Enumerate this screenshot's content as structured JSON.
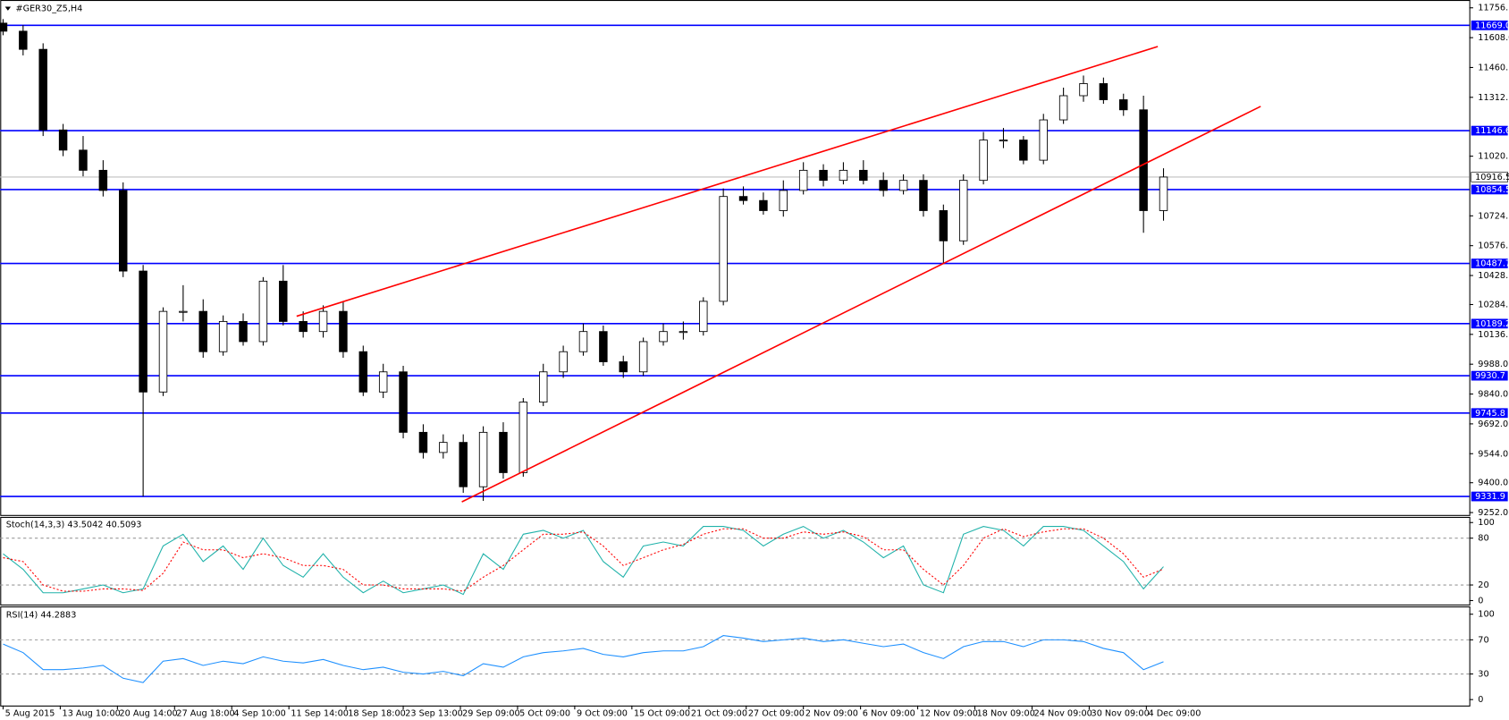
{
  "chart_data": [
    {
      "type": "candlestick",
      "title": "#GER30_Z5,H4",
      "xlim": [
        -1,
        513
      ],
      "xticks": [
        {
          "value": 0,
          "label": "5 Aug 2015"
        },
        {
          "value": 20,
          "label": "13 Aug 10:00"
        },
        {
          "value": 40,
          "label": "20 Aug 14:00"
        },
        {
          "value": 60,
          "label": "27 Aug 18:00"
        },
        {
          "value": 80,
          "label": "4 Sep 10:00"
        },
        {
          "value": 100,
          "label": "11 Sep 14:00"
        },
        {
          "value": 120,
          "label": "18 Sep 18:00"
        },
        {
          "value": 140,
          "label": "23 Sep 13:00"
        },
        {
          "value": 160,
          "label": "29 Sep 09:00"
        },
        {
          "value": 180,
          "label": "5 Oct 09:00"
        },
        {
          "value": 200,
          "label": "9 Oct 09:00"
        },
        {
          "value": 220,
          "label": "15 Oct 09:00"
        },
        {
          "value": 240,
          "label": "21 Oct 09:00"
        },
        {
          "value": 260,
          "label": "27 Oct 09:00"
        },
        {
          "value": 280,
          "label": "2 Nov 09:00"
        },
        {
          "value": 300,
          "label": "6 Nov 09:00"
        },
        {
          "value": 320,
          "label": "12 Nov 09:00"
        },
        {
          "value": 340,
          "label": "18 Nov 09:00"
        },
        {
          "value": 360,
          "label": "24 Nov 09:00"
        },
        {
          "value": 380,
          "label": "30 Nov 09:00"
        },
        {
          "value": 400,
          "label": "4 Dec 09:00"
        }
      ],
      "ylim": [
        9240,
        11790
      ],
      "yticks": [
        {
          "value": 11756,
          "label": "11756."
        },
        {
          "value": 11608,
          "label": "11608.0"
        },
        {
          "value": 11460,
          "label": "11460."
        },
        {
          "value": 11312,
          "label": "11312."
        },
        {
          "value": 11020,
          "label": "11020."
        },
        {
          "value": 10724,
          "label": "10724."
        },
        {
          "value": 10576,
          "label": "10576."
        },
        {
          "value": 10428,
          "label": "10428."
        },
        {
          "value": 10284,
          "label": "10284."
        },
        {
          "value": 10136,
          "label": "10136."
        },
        {
          "value": 9988,
          "label": "9988.0"
        },
        {
          "value": 9840,
          "label": "9840.0"
        },
        {
          "value": 9692,
          "label": "9692.0"
        },
        {
          "value": 9544,
          "label": "9544.0"
        },
        {
          "value": 9400,
          "label": "9400.0"
        },
        {
          "value": 9252,
          "label": "9252.0"
        }
      ],
      "x": [
        0,
        7,
        14,
        21,
        28,
        35,
        42,
        49,
        56,
        63,
        70,
        77,
        84,
        91,
        98,
        105,
        112,
        119,
        126,
        133,
        140,
        147,
        154,
        161,
        168,
        175,
        182,
        189,
        196,
        203,
        210,
        217,
        224,
        231,
        238,
        245,
        252,
        259,
        266,
        273,
        280,
        287,
        294,
        301,
        308,
        315,
        322,
        329,
        336,
        343,
        350,
        357,
        364,
        371,
        378,
        385,
        392,
        399,
        406
      ],
      "open": [
        11680,
        11640,
        11550,
        11150,
        11050,
        10950,
        10850,
        10450,
        9850,
        10250,
        10250,
        10050,
        10200,
        10100,
        10400,
        10200,
        10150,
        10250,
        10050,
        9850,
        9950,
        9650,
        9550,
        9600,
        9380,
        9650,
        9450,
        9800,
        9950,
        10050,
        10150,
        10000,
        9950,
        10100,
        10150,
        10150,
        10300,
        10820,
        10800,
        10750,
        10850,
        10950,
        10900,
        10950,
        10900,
        10850,
        10900,
        10750,
        10600,
        10900,
        11100,
        11100,
        11000,
        11200,
        11320,
        11380,
        11300,
        11250,
        10750
      ],
      "high": [
        11700,
        11670,
        11580,
        11180,
        11120,
        11000,
        10890,
        10480,
        10270,
        10380,
        10310,
        10230,
        10240,
        10420,
        10480,
        10250,
        10280,
        10300,
        10080,
        9990,
        9980,
        9690,
        9640,
        9640,
        9680,
        9700,
        9820,
        9990,
        10080,
        10190,
        10180,
        10030,
        10120,
        10190,
        10200,
        10320,
        10860,
        10870,
        10840,
        10900,
        10990,
        10980,
        10990,
        11000,
        10940,
        10930,
        10930,
        10780,
        10930,
        11140,
        11160,
        11120,
        11230,
        11360,
        11420,
        11410,
        11330,
        11320,
        10960
      ],
      "low": [
        11620,
        11520,
        11120,
        11020,
        10920,
        10820,
        10420,
        9332,
        9830,
        10200,
        10020,
        10030,
        10080,
        10080,
        10180,
        10120,
        10120,
        10020,
        9830,
        9820,
        9620,
        9520,
        9520,
        9350,
        9310,
        9420,
        9430,
        9780,
        9920,
        10030,
        9980,
        9920,
        9930,
        10080,
        10110,
        10130,
        10280,
        10780,
        10730,
        10720,
        10830,
        10870,
        10880,
        10880,
        10820,
        10830,
        10720,
        10490,
        10580,
        10880,
        11060,
        10980,
        10980,
        11180,
        11290,
        11280,
        11220,
        10640,
        10700
      ],
      "close": [
        11640,
        11550,
        11150,
        11050,
        10950,
        10850,
        10450,
        9850,
        10250,
        10250,
        10050,
        10200,
        10100,
        10400,
        10200,
        10150,
        10250,
        10050,
        9850,
        9950,
        9650,
        9550,
        9600,
        9380,
        9650,
        9450,
        9800,
        9950,
        10050,
        10150,
        10000,
        9950,
        10100,
        10150,
        10150,
        10300,
        10820,
        10800,
        10750,
        10850,
        10950,
        10900,
        10950,
        10900,
        10850,
        10900,
        10750,
        10600,
        10900,
        11100,
        11100,
        11000,
        11200,
        11320,
        11380,
        11300,
        11250,
        10750,
        10916.5
      ],
      "up_color": "#ffffff",
      "down_color": "#000000",
      "levels": [
        {
          "value": 11669.0,
          "label": "11669.0"
        },
        {
          "value": 11146.6,
          "label": "11146.6"
        },
        {
          "value": 10854.5,
          "label": "10854.5"
        },
        {
          "value": 10487.7,
          "label": "10487.7"
        },
        {
          "value": 10189.2,
          "label": "10189.2"
        },
        {
          "value": 9930.7,
          "label": "9930.7"
        },
        {
          "value": 9745.8,
          "label": "9745.8"
        },
        {
          "value": 9331.9,
          "label": "9331.9"
        }
      ],
      "level_color": "#0000ff",
      "current": {
        "value": 10916.5,
        "label": "10916.5"
      },
      "trendlines": [
        {
          "x": [
            102.7,
            404
          ],
          "y": [
            10226,
            11564
          ]
        },
        {
          "x": [
            160.5,
            440
          ],
          "y": [
            9305,
            11267
          ]
        }
      ],
      "trend_color": "#ff0000"
    },
    {
      "type": "line",
      "title": "Stoch(14,3,3) 43.5042 40.5093",
      "xlim": [
        -1,
        513
      ],
      "ylim": [
        -5,
        106
      ],
      "yticks": [
        100,
        80,
        20,
        0
      ],
      "guides": [
        80,
        20
      ],
      "x": [
        0,
        7,
        14,
        21,
        28,
        35,
        42,
        49,
        56,
        63,
        70,
        77,
        84,
        91,
        98,
        105,
        112,
        119,
        126,
        133,
        140,
        147,
        154,
        161,
        168,
        175,
        182,
        189,
        196,
        203,
        210,
        217,
        224,
        231,
        238,
        245,
        252,
        259,
        266,
        273,
        280,
        287,
        294,
        301,
        308,
        315,
        322,
        329,
        336,
        343,
        350,
        357,
        364,
        371,
        378,
        385,
        392,
        399,
        406
      ],
      "series": [
        {
          "color": "#20b2aa",
          "dashed": false,
          "values": [
            60,
            40,
            10,
            10,
            15,
            20,
            10,
            15,
            70,
            85,
            50,
            70,
            40,
            80,
            45,
            30,
            60,
            30,
            10,
            25,
            10,
            15,
            20,
            8,
            60,
            40,
            85,
            90,
            80,
            90,
            50,
            30,
            70,
            75,
            70,
            95,
            95,
            90,
            70,
            85,
            95,
            80,
            90,
            75,
            55,
            70,
            20,
            10,
            85,
            95,
            90,
            70,
            95,
            95,
            90,
            70,
            50,
            15,
            43.5042
          ]
        },
        {
          "color": "#ff0000",
          "dashed": true,
          "values": [
            55,
            50,
            20,
            12,
            12,
            15,
            15,
            13,
            35,
            75,
            65,
            65,
            55,
            60,
            55,
            45,
            45,
            40,
            20,
            20,
            15,
            15,
            15,
            12,
            30,
            45,
            65,
            85,
            85,
            88,
            70,
            45,
            55,
            65,
            72,
            85,
            92,
            92,
            80,
            80,
            88,
            85,
            88,
            82,
            65,
            65,
            40,
            20,
            45,
            80,
            92,
            82,
            88,
            92,
            92,
            80,
            60,
            30,
            40.5093
          ]
        }
      ]
    },
    {
      "type": "line",
      "title": "RSI(14) 44.2883",
      "xlim": [
        -1,
        513
      ],
      "ylim": [
        -7,
        108
      ],
      "yticks": [
        100,
        70,
        30,
        0
      ],
      "guides": [
        70,
        30
      ],
      "x": [
        0,
        7,
        14,
        21,
        28,
        35,
        42,
        49,
        56,
        63,
        70,
        77,
        84,
        91,
        98,
        105,
        112,
        119,
        126,
        133,
        140,
        147,
        154,
        161,
        168,
        175,
        182,
        189,
        196,
        203,
        210,
        217,
        224,
        231,
        238,
        245,
        252,
        259,
        266,
        273,
        280,
        287,
        294,
        301,
        308,
        315,
        322,
        329,
        336,
        343,
        350,
        357,
        364,
        371,
        378,
        385,
        392,
        399,
        406
      ],
      "series": [
        {
          "color": "#1e90ff",
          "dashed": false,
          "values": [
            65,
            55,
            35,
            35,
            37,
            40,
            25,
            20,
            45,
            48,
            40,
            45,
            42,
            50,
            45,
            43,
            47,
            40,
            35,
            38,
            32,
            30,
            33,
            28,
            42,
            38,
            50,
            55,
            57,
            60,
            53,
            50,
            55,
            57,
            57,
            62,
            75,
            72,
            68,
            70,
            72,
            68,
            70,
            66,
            62,
            65,
            55,
            48,
            62,
            68,
            68,
            62,
            70,
            70,
            68,
            60,
            55,
            35,
            44.2883
          ]
        }
      ]
    }
  ]
}
